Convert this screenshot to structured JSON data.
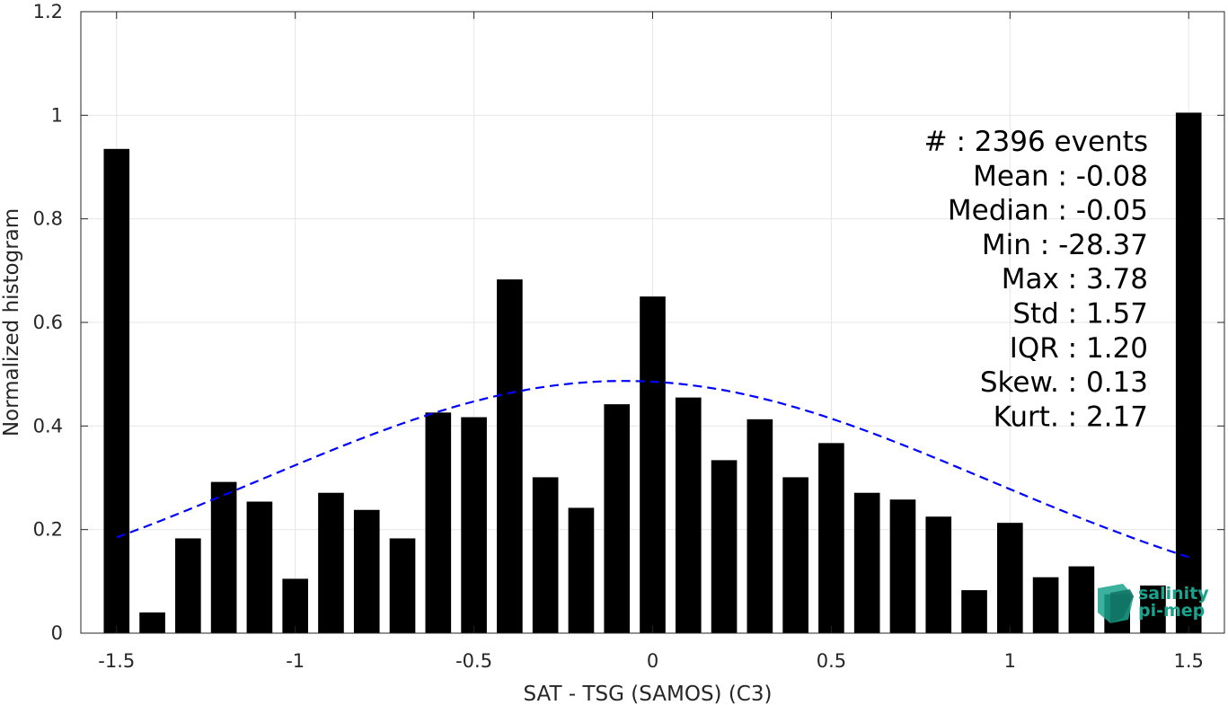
{
  "chart_data": {
    "type": "bar",
    "xlabel": "SAT - TSG (SAMOS) (C3)",
    "ylabel": "Normalized histogram",
    "xlim": [
      -1.6,
      1.6
    ],
    "ylim": [
      0,
      1.2
    ],
    "xticks": [
      -1.5,
      -1,
      -0.5,
      0,
      0.5,
      1,
      1.5
    ],
    "xtick_labels": [
      "-1.5",
      "-1",
      "-0.5",
      "0",
      "0.5",
      "1",
      "1.5"
    ],
    "yticks": [
      0,
      0.2,
      0.4,
      0.6,
      0.8,
      1,
      1.2
    ],
    "ytick_labels": [
      "0",
      "0.2",
      "0.4",
      "0.6",
      "0.8",
      "1",
      "1.2"
    ],
    "grid": true,
    "bar_color": "#000000",
    "bars": {
      "x": [
        -1.5,
        -1.4,
        -1.3,
        -1.2,
        -1.1,
        -1.0,
        -0.9,
        -0.8,
        -0.7,
        -0.6,
        -0.5,
        -0.4,
        -0.3,
        -0.2,
        -0.1,
        0.0,
        0.1,
        0.2,
        0.3,
        0.4,
        0.5,
        0.6,
        0.7,
        0.8,
        0.9,
        1.0,
        1.1,
        1.2,
        1.3,
        1.4,
        1.5
      ],
      "values": [
        0.935,
        0.04,
        0.183,
        0.292,
        0.254,
        0.105,
        0.271,
        0.238,
        0.183,
        0.426,
        0.417,
        0.683,
        0.301,
        0.242,
        0.442,
        0.65,
        0.455,
        0.334,
        0.413,
        0.301,
        0.367,
        0.271,
        0.258,
        0.225,
        0.083,
        0.213,
        0.108,
        0.129,
        0.075,
        0.092,
        1.005
      ]
    },
    "fit_curve": {
      "style": "dashed",
      "color": "#0000ff",
      "distribution": "normal",
      "mean": -0.08,
      "std": 1.57,
      "x_range": [
        -1.5,
        1.5
      ]
    },
    "stats": [
      "#  : 2396 events",
      "Mean : -0.08",
      "Median : -0.05",
      "Min : -28.37",
      "Max : 3.78",
      "Std : 1.57",
      "IQR : 1.20",
      "Skew. : 0.13",
      "Kurt. : 2.17"
    ],
    "logo": {
      "line1": "salinity",
      "line2": "pi-mep",
      "color": "#1aa38c"
    }
  }
}
